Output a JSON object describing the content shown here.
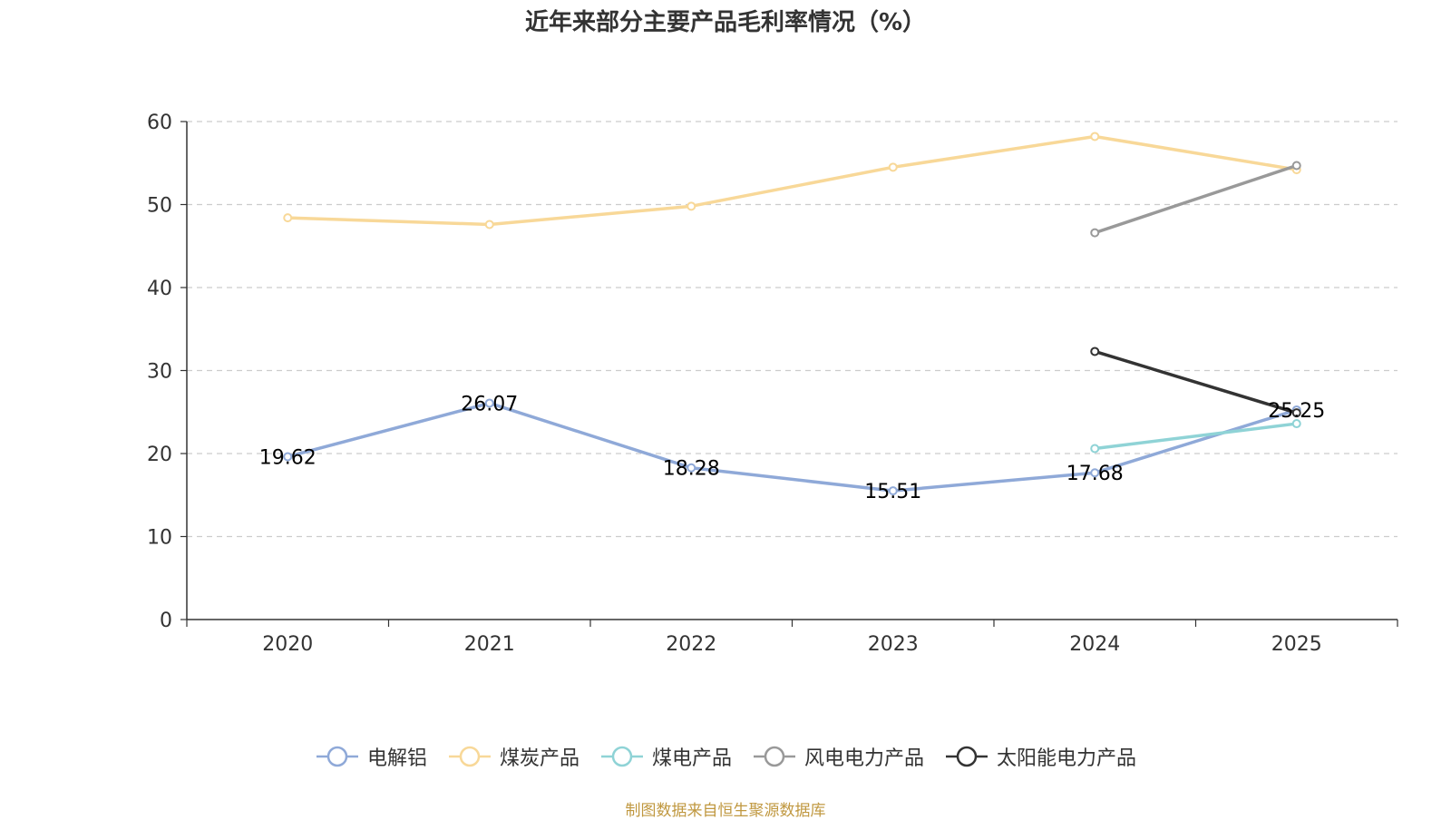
{
  "chart_data": {
    "type": "line",
    "title": "近年来部分主要产品毛利率情况（%）",
    "categories": [
      "2020",
      "2021",
      "2022",
      "2023",
      "2024",
      "2025"
    ],
    "yticks": [
      "0",
      "10",
      "20",
      "30",
      "40",
      "50",
      "60"
    ],
    "ylim": [
      0,
      60
    ],
    "grid": "horizontal-dashed",
    "legend_position": "bottom",
    "series": [
      {
        "name": "电解铝",
        "color": "#8fa9d8",
        "values": [
          19.62,
          26.07,
          18.28,
          15.51,
          17.68,
          25.25
        ],
        "labels": [
          "19.62",
          "26.07",
          "18.28",
          "15.51",
          "17.68",
          "25.25"
        ]
      },
      {
        "name": "煤炭产品",
        "color": "#f8d898",
        "values": [
          48.4,
          47.6,
          49.8,
          54.5,
          58.2,
          54.2
        ]
      },
      {
        "name": "煤电产品",
        "color": "#8fd3d6",
        "values": [
          null,
          null,
          null,
          null,
          20.6,
          23.6
        ]
      },
      {
        "name": "风电电力产品",
        "color": "#999999",
        "values": [
          null,
          null,
          null,
          null,
          46.6,
          54.7
        ]
      },
      {
        "name": "太阳能电力产品",
        "color": "#333333",
        "values": [
          null,
          null,
          null,
          null,
          32.3,
          24.9
        ]
      }
    ]
  },
  "footer": {
    "text": "制图数据来自恒生聚源数据库",
    "color": "#c09840"
  }
}
